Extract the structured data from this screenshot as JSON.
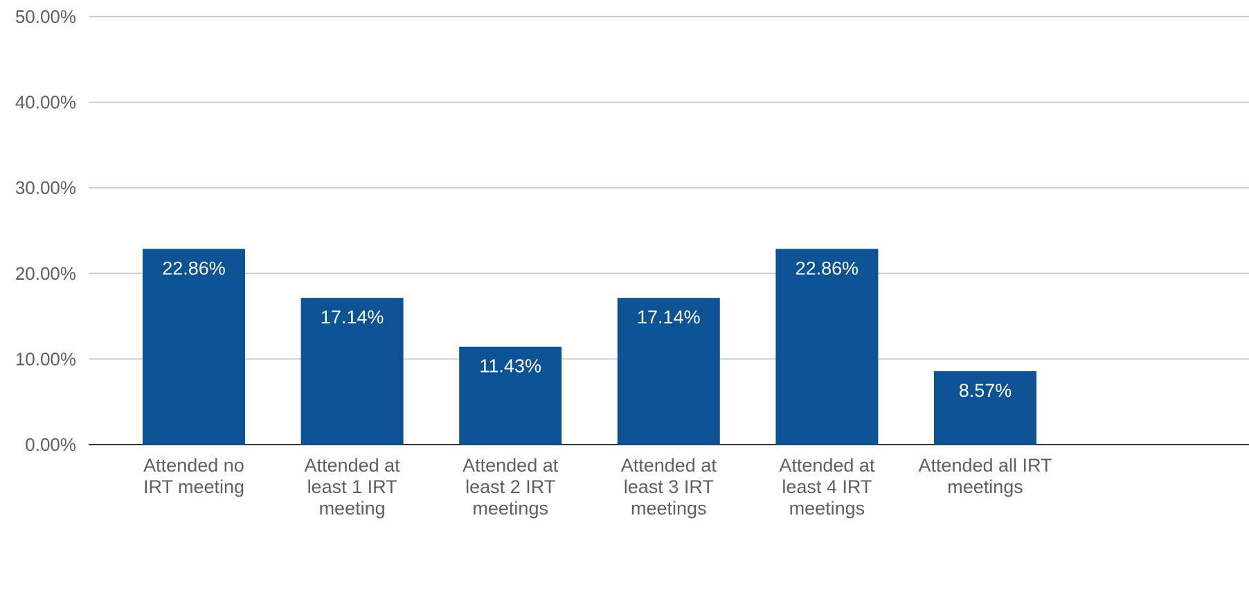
{
  "chart_data": {
    "type": "bar",
    "title": "",
    "xlabel": "",
    "ylabel": "",
    "ylim": [
      0,
      50
    ],
    "yticks": [
      "0.00%",
      "10.00%",
      "20.00%",
      "30.00%",
      "40.00%",
      "50.00%"
    ],
    "ytick_values": [
      0,
      10,
      20,
      30,
      40,
      50
    ],
    "grid": true,
    "legend": "none",
    "bar_color": "#0b5394",
    "categories": [
      [
        "Attended no",
        "IRT meeting"
      ],
      [
        "Attended at",
        "least 1 IRT",
        "meeting"
      ],
      [
        "Attended at",
        "least 2 IRT",
        "meetings"
      ],
      [
        "Attended at",
        "least 3 IRT",
        "meetings"
      ],
      [
        "Attended at",
        "least 4 IRT",
        "meetings"
      ],
      [
        "Attended all IRT",
        "meetings"
      ]
    ],
    "values": [
      22.86,
      17.14,
      11.43,
      17.14,
      22.86,
      8.57
    ],
    "value_labels": [
      "22.86%",
      "17.14%",
      "11.43%",
      "17.14%",
      "22.86%",
      "8.57%"
    ]
  }
}
